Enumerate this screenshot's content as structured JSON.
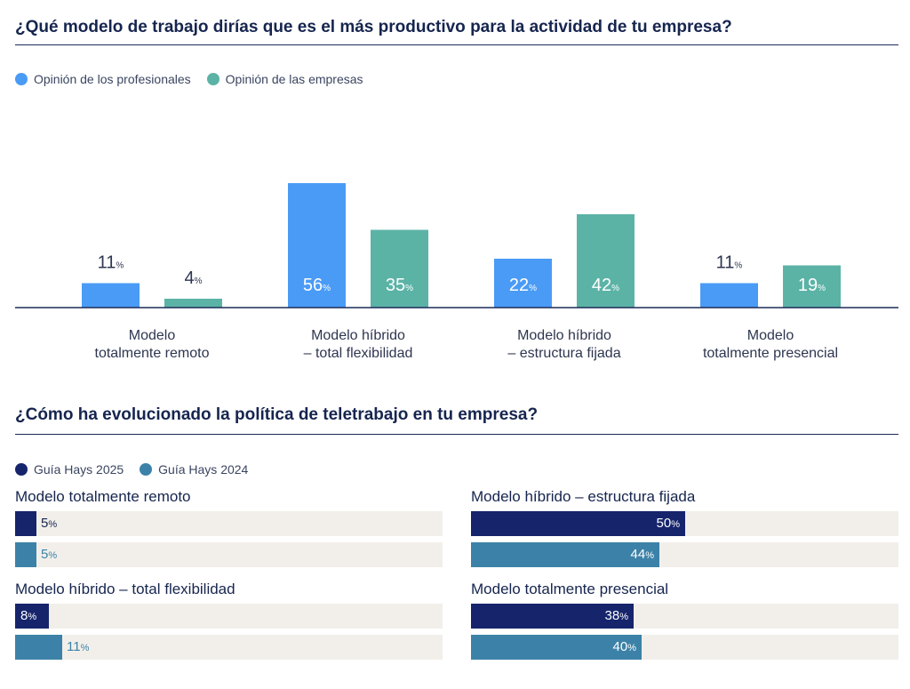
{
  "colors": {
    "profesionales": "#4a9bf5",
    "empresas": "#5bb3a6",
    "hays2025": "#15246b",
    "hays2024": "#3c82a8",
    "track": "#f2efea",
    "text_dark": "#16254f"
  },
  "chart1": {
    "title": "¿Qué modelo de trabajo dirías que es el más productivo para la actividad de tu empresa?",
    "legend": [
      {
        "label": "Opinión de los profesionales",
        "color": "#4a9bf5"
      },
      {
        "label": "Opinión de las empresas",
        "color": "#5bb3a6"
      }
    ]
  },
  "chart2": {
    "title": "¿Cómo ha evolucionado la política de teletrabajo en tu empresa?",
    "legend": [
      {
        "label": "Guía Hays 2025",
        "color": "#15246b"
      },
      {
        "label": "Guía Hays 2024",
        "color": "#3c82a8"
      }
    ]
  },
  "chart_data": [
    {
      "type": "bar",
      "title": "¿Qué modelo de trabajo dirías que es el más productivo para la actividad de tu empresa?",
      "categories": [
        [
          "Modelo",
          "totalmente remoto"
        ],
        [
          "Modelo híbrido",
          "– total flexibilidad"
        ],
        [
          "Modelo híbrido",
          "– estructura fijada"
        ],
        [
          "Modelo",
          "totalmente presencial"
        ]
      ],
      "series": [
        {
          "name": "Opinión de los profesionales",
          "values": [
            11,
            56,
            22,
            11
          ]
        },
        {
          "name": "Opinión de las empresas",
          "values": [
            4,
            35,
            42,
            19
          ]
        }
      ],
      "unit": "%",
      "legend_position": "top-left",
      "grid": false
    },
    {
      "type": "bar",
      "orientation": "horizontal",
      "title": "¿Cómo ha evolucionado la política de teletrabajo en tu empresa?",
      "categories": [
        "Modelo totalmente remoto",
        "Modelo híbrido – total flexibilidad",
        "Modelo híbrido – estructura fijada",
        "Modelo totalmente presencial"
      ],
      "series": [
        {
          "name": "Guía Hays 2025",
          "values": [
            5,
            8,
            50,
            38
          ]
        },
        {
          "name": "Guía Hays 2024",
          "values": [
            5,
            11,
            44,
            40
          ]
        }
      ],
      "unit": "%",
      "xlim": [
        0,
        100
      ],
      "legend_position": "top-left",
      "grid": false
    }
  ]
}
